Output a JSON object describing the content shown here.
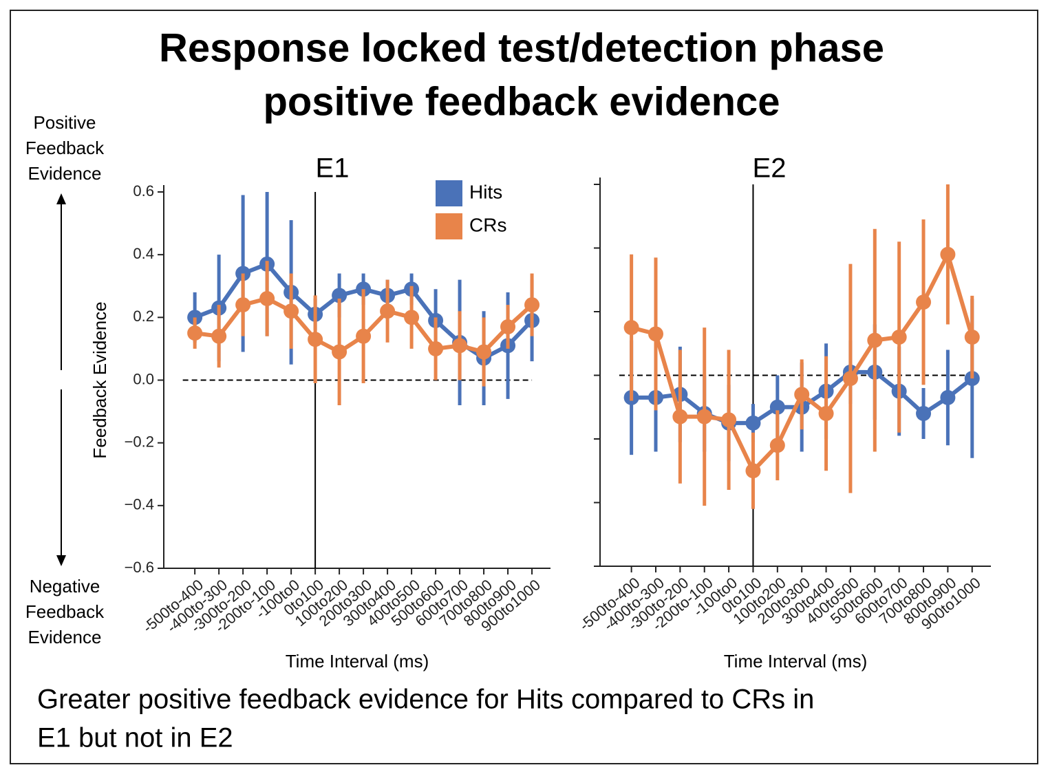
{
  "title": [
    "Response locked test/detection phase",
    "positive feedback evidence"
  ],
  "annotations": {
    "top": [
      "Positive",
      "Feedback",
      "Evidence"
    ],
    "bottom": [
      "Negative",
      "Feedback",
      "Evidence"
    ]
  },
  "caption": [
    "Greater positive feedback evidence for Hits compared to CRs in",
    "E1 but not in E2"
  ],
  "chart_data": [
    {
      "type": "line",
      "title": "E1",
      "categories": [
        "-500to-400",
        "-400to-300",
        "-300to-200",
        "-200to-100",
        "-100to0",
        "0to100",
        "100to200",
        "200to300",
        "300to400",
        "400to500",
        "500to600",
        "600to700",
        "700to800",
        "800to900",
        "900to1000"
      ],
      "series": [
        {
          "name": "Hits",
          "color": "#4a72b8",
          "values": [
            0.2,
            0.23,
            0.34,
            0.37,
            0.28,
            0.21,
            0.27,
            0.29,
            0.27,
            0.29,
            0.19,
            0.12,
            0.07,
            0.11,
            0.19
          ],
          "errors": [
            0.08,
            0.17,
            0.25,
            0.23,
            0.23,
            0.05,
            0.07,
            0.05,
            0.05,
            0.05,
            0.1,
            0.2,
            0.15,
            0.17,
            0.13
          ]
        },
        {
          "name": "CRs",
          "color": "#e8844a",
          "values": [
            0.15,
            0.14,
            0.24,
            0.26,
            0.22,
            0.13,
            0.09,
            0.14,
            0.22,
            0.2,
            0.1,
            0.11,
            0.09,
            0.17,
            0.24
          ],
          "errors": [
            0.05,
            0.1,
            0.1,
            0.12,
            0.12,
            0.14,
            0.17,
            0.15,
            0.1,
            0.1,
            0.1,
            0.11,
            0.11,
            0.07,
            0.1
          ]
        }
      ],
      "ylim": [
        -0.6,
        0.6
      ],
      "yticks": [
        {
          "value": -0.6,
          "label": "−0.6"
        },
        {
          "value": -0.4,
          "label": "−0.4"
        },
        {
          "value": -0.2,
          "label": "−0.2"
        },
        {
          "value": 0,
          "label": "0.0"
        },
        0.2,
        0.4,
        0.6
      ],
      "show_ytick_labels": true,
      "xlabel": "Time Interval (ms)",
      "ylabel": "Feedback Evidence",
      "hline": 0,
      "vline_index": 5,
      "legend": "upper right"
    },
    {
      "type": "line",
      "title": "E2",
      "categories": [
        "-500to-400",
        "-400to-300",
        "-300to-200",
        "-200to-100",
        "-100to0",
        "0to100",
        "100to200",
        "200to300",
        "300to400",
        "400to500",
        "500to600",
        "600to700",
        "700to800",
        "800to900",
        "900to1000"
      ],
      "series": [
        {
          "color": "#4a72b8",
          "values": [
            -0.07,
            -0.07,
            -0.06,
            -0.12,
            -0.15,
            -0.15,
            -0.1,
            -0.1,
            -0.05,
            0.01,
            0.01,
            -0.05,
            -0.12,
            -0.07,
            -0.01
          ],
          "errors": [
            0.18,
            0.17,
            0.15,
            0.12,
            0.12,
            0.06,
            0.1,
            0.14,
            0.15,
            0.1,
            0.15,
            0.14,
            0.08,
            0.15,
            0.25
          ]
        },
        {
          "color": "#e8844a",
          "values": [
            0.15,
            0.13,
            -0.13,
            -0.13,
            -0.14,
            -0.3,
            -0.22,
            -0.06,
            -0.12,
            -0.01,
            0.11,
            0.12,
            0.23,
            0.38,
            0.12
          ],
          "errors": [
            0.23,
            0.24,
            0.21,
            0.28,
            0.22,
            0.12,
            0.11,
            0.11,
            0.18,
            0.36,
            0.35,
            0.3,
            0.26,
            0.22,
            0.13
          ]
        }
      ],
      "ylim": [
        -0.6,
        0.6
      ],
      "yticks": [
        -0.6,
        -0.4,
        -0.2,
        0,
        0.2,
        0.4,
        0.6
      ],
      "show_ytick_labels": false,
      "xlabel": "Time Interval (ms)",
      "hline": 0,
      "vline_index": 5
    }
  ]
}
